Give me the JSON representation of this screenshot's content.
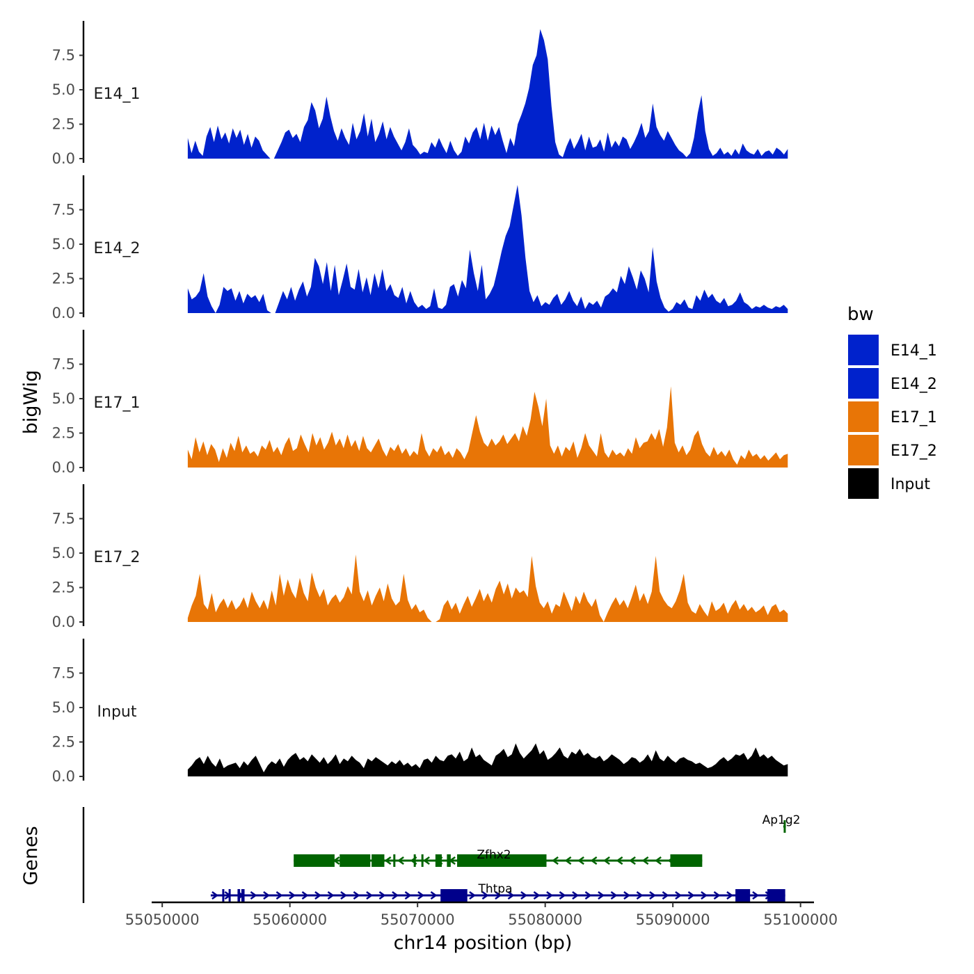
{
  "chart_data": {
    "type": "area",
    "ylabel": "bigWig",
    "xlabel": "chr14 position (bp)",
    "ylim": [
      0,
      10
    ],
    "yticks": [
      "0.0",
      "2.5",
      "5.0",
      "7.5"
    ],
    "ytick_values": [
      0,
      2.5,
      5,
      7.5
    ],
    "xlim": [
      55049500,
      55101000
    ],
    "xticks": [
      "55050000",
      "55060000",
      "55070000",
      "55080000",
      "55090000",
      "55100000"
    ],
    "xtick_values": [
      55050000,
      55060000,
      55070000,
      55080000,
      55090000,
      55100000
    ],
    "x_start": 55052000,
    "x_end": 55099000,
    "legend": {
      "title": "bw",
      "position": "right",
      "entries": [
        {
          "label": "E14_1",
          "color": "#0022CC"
        },
        {
          "label": "E14_2",
          "color": "#0022CC"
        },
        {
          "label": "E17_1",
          "color": "#E87506"
        },
        {
          "label": "E17_2",
          "color": "#E87506"
        },
        {
          "label": "Input",
          "color": "#000000"
        }
      ]
    },
    "series": [
      {
        "name": "E14_1",
        "color": "#0022CC",
        "values": [
          1.5,
          0.4,
          1.3,
          0.5,
          0.2,
          1.6,
          2.3,
          1.2,
          2.4,
          1.4,
          1.9,
          1.1,
          2.2,
          1.5,
          2.1,
          1.0,
          1.8,
          0.8,
          1.6,
          1.3,
          0.6,
          0.3,
          0.0,
          0.0,
          0.6,
          1.2,
          1.9,
          2.1,
          1.5,
          1.8,
          1.2,
          2.3,
          2.8,
          4.1,
          3.5,
          2.2,
          2.9,
          4.5,
          3.1,
          2.0,
          1.3,
          2.2,
          1.5,
          1.0,
          2.6,
          1.4,
          2.0,
          3.3,
          1.6,
          2.9,
          1.2,
          1.8,
          2.7,
          1.4,
          2.3,
          1.6,
          1.1,
          0.6,
          1.2,
          2.2,
          1.0,
          0.7,
          0.3,
          0.5,
          0.4,
          1.2,
          0.8,
          1.5,
          0.9,
          0.4,
          1.3,
          0.6,
          0.2,
          0.5,
          1.6,
          1.1,
          1.9,
          2.3,
          1.4,
          2.6,
          1.3,
          2.4,
          1.7,
          2.3,
          1.3,
          0.4,
          1.5,
          0.9,
          2.5,
          3.2,
          4.0,
          5.1,
          6.8,
          7.5,
          9.4,
          8.6,
          7.2,
          3.8,
          1.2,
          0.3,
          0.1,
          0.9,
          1.5,
          0.7,
          1.2,
          1.8,
          0.6,
          1.6,
          0.8,
          0.9,
          1.4,
          0.5,
          1.9,
          0.8,
          1.3,
          0.9,
          1.6,
          1.4,
          0.7,
          1.2,
          1.8,
          2.6,
          1.5,
          2.0,
          4.0,
          2.3,
          1.7,
          1.3,
          2.0,
          1.5,
          1.0,
          0.6,
          0.4,
          0.1,
          0.4,
          1.5,
          3.3,
          4.6,
          2.0,
          0.7,
          0.2,
          0.4,
          0.8,
          0.3,
          0.5,
          0.2,
          0.7,
          0.3,
          1.1,
          0.6,
          0.4,
          0.3,
          0.7,
          0.2,
          0.5,
          0.6,
          0.3,
          0.8,
          0.6,
          0.3,
          0.7
        ]
      },
      {
        "name": "E14_2",
        "color": "#0022CC",
        "values": [
          1.8,
          1.0,
          1.2,
          1.6,
          2.9,
          1.2,
          0.5,
          0.0,
          0.6,
          1.9,
          1.6,
          1.8,
          0.9,
          1.6,
          0.7,
          1.4,
          1.1,
          1.3,
          0.8,
          1.4,
          0.2,
          0.0,
          0.0,
          0.8,
          1.6,
          1.0,
          1.9,
          0.9,
          1.7,
          2.3,
          1.2,
          1.9,
          4.0,
          3.4,
          2.1,
          3.7,
          1.6,
          3.5,
          1.3,
          2.4,
          3.6,
          1.9,
          1.7,
          3.2,
          1.5,
          2.6,
          1.3,
          2.9,
          1.8,
          3.2,
          1.6,
          2.1,
          1.3,
          1.1,
          1.9,
          0.7,
          1.6,
          0.8,
          0.4,
          0.6,
          0.3,
          0.5,
          1.8,
          0.4,
          0.3,
          0.6,
          1.9,
          2.1,
          1.2,
          2.4,
          1.8,
          4.6,
          2.9,
          1.6,
          3.5,
          1.0,
          1.4,
          2.0,
          3.2,
          4.5,
          5.6,
          6.3,
          7.8,
          9.3,
          7.1,
          4.0,
          1.6,
          0.8,
          1.3,
          0.5,
          0.8,
          0.6,
          1.1,
          1.4,
          0.6,
          1.0,
          1.6,
          0.9,
          0.5,
          1.2,
          0.3,
          0.8,
          0.6,
          0.9,
          0.4,
          1.2,
          1.4,
          1.8,
          1.5,
          2.7,
          2.1,
          3.4,
          2.6,
          1.7,
          3.1,
          2.5,
          1.5,
          4.8,
          2.3,
          1.1,
          0.4,
          0.1,
          0.3,
          0.8,
          0.6,
          1.0,
          0.4,
          0.3,
          1.3,
          0.9,
          1.7,
          1.1,
          1.4,
          0.9,
          0.7,
          1.1,
          0.5,
          0.6,
          0.9,
          1.5,
          0.8,
          0.6,
          0.3,
          0.5,
          0.4,
          0.6,
          0.4,
          0.3,
          0.5,
          0.4,
          0.6,
          0.3
        ]
      },
      {
        "name": "E17_1",
        "color": "#E87506",
        "values": [
          1.3,
          0.6,
          2.2,
          1.1,
          1.9,
          0.9,
          1.7,
          1.3,
          0.4,
          1.4,
          0.7,
          1.8,
          1.2,
          2.3,
          1.1,
          1.6,
          1.0,
          1.2,
          0.8,
          1.6,
          1.3,
          2.0,
          1.1,
          1.5,
          0.9,
          1.7,
          2.2,
          1.2,
          1.4,
          2.4,
          1.7,
          1.1,
          2.5,
          1.6,
          2.2,
          1.3,
          1.8,
          2.6,
          1.6,
          2.1,
          1.4,
          2.4,
          1.5,
          2.0,
          1.2,
          2.3,
          1.4,
          1.1,
          1.6,
          2.1,
          1.3,
          0.8,
          1.5,
          1.2,
          1.7,
          1.0,
          1.4,
          0.8,
          1.2,
          0.9,
          2.5,
          1.3,
          0.8,
          1.4,
          1.1,
          1.6,
          0.9,
          1.2,
          0.7,
          1.4,
          1.1,
          0.6,
          1.2,
          2.5,
          3.8,
          2.6,
          1.8,
          1.5,
          2.1,
          1.6,
          1.9,
          2.4,
          1.7,
          2.1,
          2.5,
          1.9,
          3.0,
          2.3,
          3.5,
          5.5,
          4.4,
          3.0,
          5.0,
          1.6,
          1.0,
          1.6,
          0.8,
          1.5,
          1.2,
          1.9,
          0.7,
          1.4,
          2.5,
          1.6,
          1.2,
          0.8,
          2.5,
          1.1,
          0.7,
          1.3,
          0.9,
          1.1,
          0.8,
          1.4,
          1.0,
          2.2,
          1.4,
          1.8,
          1.9,
          2.5,
          2.0,
          2.8,
          1.5,
          2.9,
          5.9,
          1.8,
          1.1,
          1.6,
          0.9,
          1.3,
          2.3,
          2.7,
          1.7,
          1.1,
          0.8,
          1.5,
          0.9,
          1.2,
          0.8,
          1.3,
          0.6,
          0.2,
          0.9,
          0.6,
          1.3,
          0.8,
          1.0,
          0.6,
          0.9,
          0.5,
          0.8,
          1.1,
          0.6,
          0.9,
          1.0
        ]
      },
      {
        "name": "E17_2",
        "color": "#E87506",
        "values": [
          0.3,
          1.2,
          1.9,
          3.5,
          1.3,
          0.9,
          2.1,
          0.7,
          1.3,
          1.7,
          1.0,
          1.6,
          0.9,
          1.2,
          1.8,
          1.0,
          2.2,
          1.5,
          1.0,
          1.6,
          0.9,
          2.3,
          1.2,
          3.5,
          1.9,
          3.1,
          2.2,
          1.7,
          3.2,
          2.1,
          1.5,
          3.6,
          2.5,
          1.8,
          2.4,
          1.2,
          1.7,
          2.0,
          1.4,
          1.8,
          2.6,
          2.0,
          4.9,
          2.2,
          1.5,
          2.3,
          1.2,
          1.9,
          2.5,
          1.5,
          2.8,
          1.7,
          1.2,
          1.5,
          3.5,
          1.6,
          0.9,
          1.3,
          0.7,
          0.9,
          0.3,
          0.0,
          0.0,
          0.2,
          1.2,
          1.6,
          0.9,
          1.4,
          0.6,
          1.3,
          1.9,
          1.1,
          1.7,
          2.4,
          1.5,
          2.1,
          1.4,
          2.4,
          3.0,
          2.0,
          2.8,
          1.7,
          2.5,
          2.1,
          2.3,
          1.8,
          4.8,
          2.6,
          1.4,
          1.0,
          1.5,
          0.6,
          1.3,
          1.1,
          2.2,
          1.5,
          0.8,
          1.9,
          1.3,
          2.2,
          1.5,
          1.1,
          1.7,
          0.5,
          0.0,
          0.7,
          1.3,
          1.8,
          1.2,
          1.6,
          1.0,
          1.8,
          2.7,
          1.5,
          2.1,
          1.3,
          2.2,
          4.8,
          2.2,
          1.6,
          1.2,
          1.0,
          1.5,
          2.3,
          3.5,
          1.4,
          0.8,
          0.6,
          1.3,
          0.8,
          0.4,
          1.5,
          0.8,
          1.0,
          1.4,
          0.6,
          1.2,
          1.6,
          0.9,
          1.3,
          0.8,
          1.1,
          0.7,
          0.9,
          1.2,
          0.5,
          1.1,
          1.3,
          0.7,
          0.9,
          0.6
        ]
      },
      {
        "name": "Input",
        "color": "#000000",
        "values": [
          0.5,
          0.8,
          1.2,
          1.4,
          0.9,
          1.5,
          1.0,
          0.7,
          1.3,
          0.6,
          0.8,
          0.9,
          1.0,
          0.6,
          1.1,
          0.8,
          1.2,
          1.5,
          0.9,
          0.3,
          0.8,
          1.1,
          0.9,
          1.3,
          0.7,
          1.2,
          1.5,
          1.7,
          1.2,
          1.4,
          1.1,
          1.6,
          1.3,
          1.0,
          1.4,
          0.9,
          1.2,
          1.6,
          0.9,
          1.3,
          1.1,
          1.5,
          1.2,
          1.0,
          0.6,
          1.3,
          1.1,
          1.4,
          1.2,
          1.0,
          0.8,
          1.1,
          0.9,
          1.2,
          0.8,
          1.0,
          0.7,
          0.9,
          0.6,
          1.2,
          1.3,
          1.0,
          1.5,
          1.2,
          1.1,
          1.5,
          1.6,
          1.3,
          1.8,
          1.1,
          1.3,
          2.1,
          1.4,
          1.6,
          1.2,
          1.0,
          0.8,
          1.5,
          1.7,
          2.0,
          1.4,
          1.6,
          2.4,
          1.7,
          1.3,
          1.6,
          1.9,
          2.4,
          1.6,
          1.9,
          1.2,
          1.4,
          1.7,
          2.1,
          1.5,
          1.3,
          1.8,
          1.6,
          2.0,
          1.5,
          1.7,
          1.4,
          1.3,
          1.5,
          1.1,
          1.3,
          1.6,
          1.4,
          1.2,
          0.9,
          1.1,
          1.4,
          1.3,
          1.0,
          1.2,
          1.6,
          1.1,
          1.9,
          1.3,
          1.1,
          1.5,
          1.2,
          1.0,
          1.3,
          1.4,
          1.2,
          1.1,
          0.9,
          1.0,
          0.8,
          0.6,
          0.7,
          0.9,
          1.2,
          1.4,
          1.1,
          1.3,
          1.6,
          1.5,
          1.7,
          1.2,
          1.5,
          2.1,
          1.4,
          1.6,
          1.3,
          1.5,
          1.2,
          1.0,
          0.8,
          0.9
        ]
      }
    ],
    "genes": {
      "track_label": "Genes",
      "items": [
        {
          "name": "Ap1g2",
          "color": "#006400",
          "strand": "-",
          "start": 55098650,
          "end": 55098850,
          "row": 2,
          "exons": [
            [
              55098680,
              55098720
            ]
          ]
        },
        {
          "name": "Zfhx2",
          "color": "#006400",
          "strand": "-",
          "start": 55060300,
          "end": 55092300,
          "row": 1,
          "exons": [
            [
              55060300,
              55063500
            ],
            [
              55063900,
              55066300
            ],
            [
              55066400,
              55067400
            ],
            [
              55068100,
              55068250
            ],
            [
              55069700,
              55069800
            ],
            [
              55070300,
              55070450
            ],
            [
              55071400,
              55071900
            ],
            [
              55072300,
              55072600
            ],
            [
              55073100,
              55080100
            ],
            [
              55089800,
              55092300
            ]
          ]
        },
        {
          "name": "Thtpa",
          "color": "#00008B",
          "strand": "+",
          "start": 55053800,
          "end": 55098800,
          "row": 0,
          "exons": [
            [
              55054700,
              55054850
            ],
            [
              55055200,
              55055350
            ],
            [
              55055900,
              55056100
            ],
            [
              55056200,
              55056450
            ],
            [
              55071800,
              55073900
            ],
            [
              55094900,
              55096050
            ],
            [
              55097400,
              55098800
            ]
          ]
        }
      ]
    }
  }
}
